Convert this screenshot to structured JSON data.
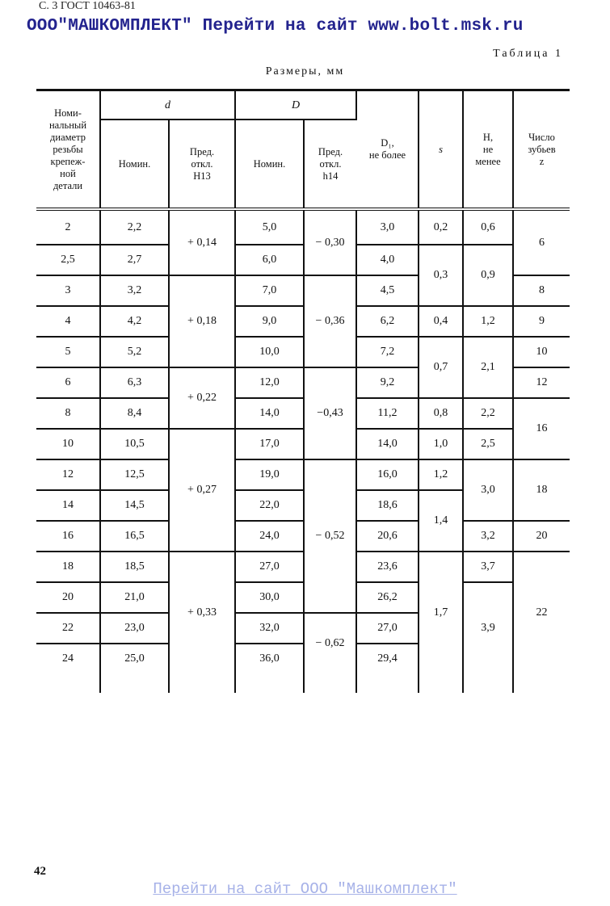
{
  "header": {
    "gost_ref": "С. 3 ГОСТ 10463-81",
    "watermark": "ООО\"МАШКОМПЛЕКТ\" Перейти на сайт www.bolt.msk.ru",
    "table_number": "Таблица 1",
    "units": "Размеры, мм"
  },
  "columns": {
    "nominal": "Номи-\nнальный\nдиаметр\nрезьбы\nкрепеж-\nной\nдетали",
    "d": "d",
    "D": "D",
    "d_nom": "Номин.",
    "d_tol": "Пред.\nоткл.\nH13",
    "D_nom": "Номин.",
    "D_tol": "Пред.\nоткл.\nh14",
    "D1": "D₁,\nне более",
    "s": "s",
    "H": "H,\nне\nменее",
    "z": "Число\nзубьев\nz"
  },
  "table": {
    "nominal": [
      "2",
      "2,5",
      "3",
      "4",
      "5",
      "6",
      "8",
      "10",
      "12",
      "14",
      "16",
      "18",
      "20",
      "22",
      "24"
    ],
    "d_nom": [
      "2,2",
      "2,7",
      "3,2",
      "4,2",
      "5,2",
      "6,3",
      "8,4",
      "10,5",
      "12,5",
      "14,5",
      "16,5",
      "18,5",
      "21,0",
      "23,0",
      "25,0"
    ],
    "d_tol": [
      "+ 0,14",
      "+ 0,18",
      "+ 0,22",
      "+ 0,27",
      "+ 0,33"
    ],
    "D_nom": [
      "5,0",
      "6,0",
      "7,0",
      "9,0",
      "10,0",
      "12,0",
      "14,0",
      "17,0",
      "19,0",
      "22,0",
      "24,0",
      "27,0",
      "30,0",
      "32,0",
      "36,0"
    ],
    "D_tol": [
      "− 0,30",
      "− 0,36",
      "−0,43",
      "− 0,52",
      "− 0,62"
    ],
    "D1": [
      "3,0",
      "4,0",
      "4,5",
      "6,2",
      "7,2",
      "9,2",
      "11,2",
      "14,0",
      "16,0",
      "18,6",
      "20,6",
      "23,6",
      "26,2",
      "27,0",
      "29,4"
    ],
    "s": [
      "0,2",
      "0,3",
      "0,4",
      "0,7",
      "0,8",
      "1,0",
      "1,2",
      "1,4",
      "1,7"
    ],
    "H": [
      "0,6",
      "0,9",
      "1,2",
      "2,1",
      "2,2",
      "2,5",
      "3,0",
      "3,2",
      "3,7",
      "3,9"
    ],
    "z": [
      "6",
      "8",
      "9",
      "10",
      "12",
      "16",
      "18",
      "20",
      "22"
    ]
  },
  "footer": {
    "page_number": "42",
    "link": "Перейти на сайт ООО \"Машкомплект\""
  },
  "colors": {
    "watermark": "#23238e",
    "link": "#a7b2e8"
  }
}
